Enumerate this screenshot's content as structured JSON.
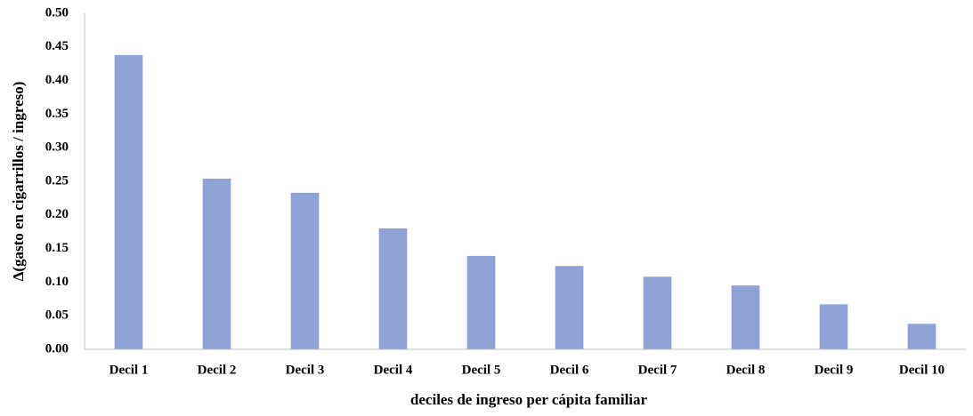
{
  "chart_data": {
    "type": "bar",
    "x_label": "deciles de ingreso per cápita familiar",
    "y_label": "Δ(gasto en cigarrillos / ingreso)",
    "categories": [
      "Decil 1",
      "Decil 2",
      "Decil 3",
      "Decil 4",
      "Decil 5",
      "Decil 6",
      "Decil 7",
      "Decil 8",
      "Decil 9",
      "Decil 10"
    ],
    "values": [
      0.438,
      0.254,
      0.233,
      0.18,
      0.139,
      0.124,
      0.108,
      0.095,
      0.067,
      0.038
    ],
    "color": "#8fa3d6",
    "ylim": [
      0,
      0.5
    ],
    "yticks": [
      {
        "value": 0,
        "label": "0.00"
      },
      {
        "value": 0.05,
        "label": "0.05"
      },
      {
        "value": 0.1,
        "label": "0.10"
      },
      {
        "value": 0.15,
        "label": "0.15"
      },
      {
        "value": 0.2,
        "label": "0.20"
      },
      {
        "value": 0.25,
        "label": "0.25"
      },
      {
        "value": 0.3,
        "label": "0.30"
      },
      {
        "value": 0.35,
        "label": "0.35"
      },
      {
        "value": 0.4,
        "label": "0.40"
      },
      {
        "value": 0.45,
        "label": "0.45"
      },
      {
        "value": 0.5,
        "label": "0.50"
      }
    ],
    "grid": false
  }
}
